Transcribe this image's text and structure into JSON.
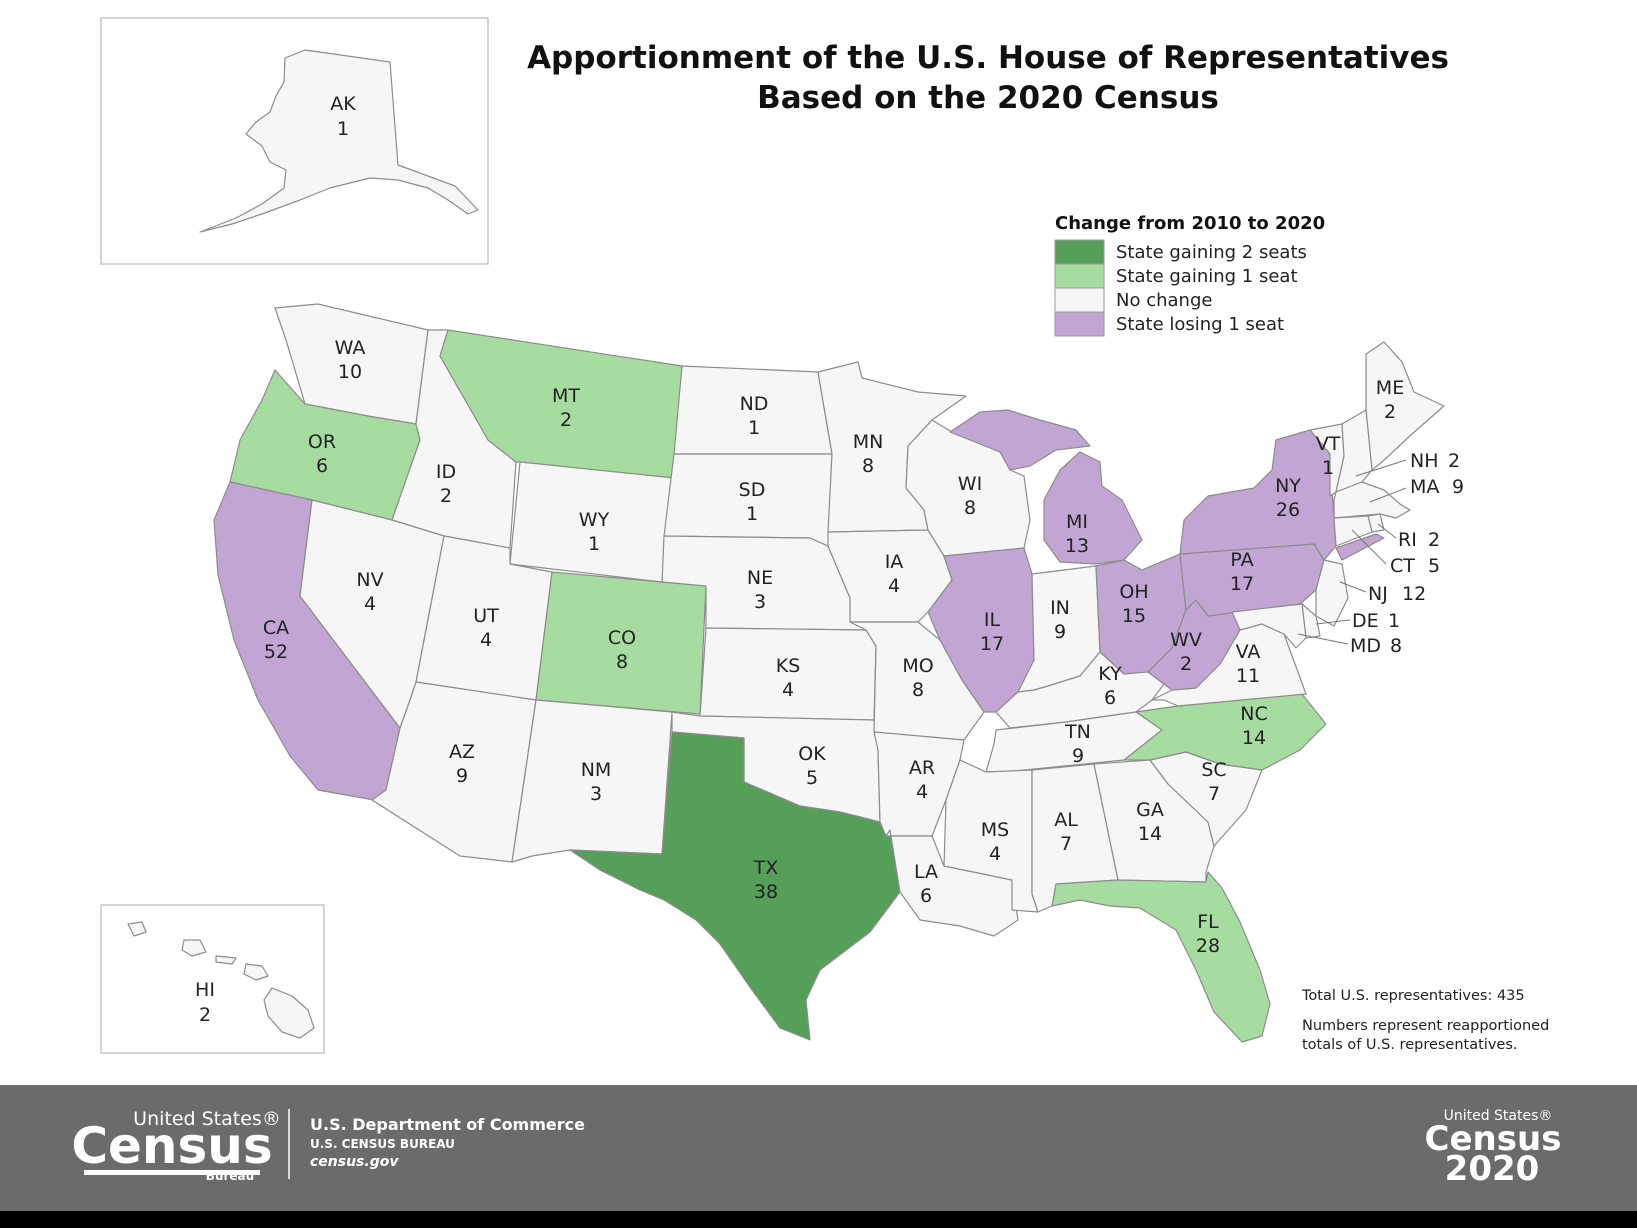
{
  "title": {
    "line1": "Apportionment of the U.S. House of Representatives",
    "line2": "Based on the 2020 Census"
  },
  "legend": {
    "title": "Change from 2010 to 2020",
    "items": [
      {
        "key": "gain2",
        "label": "State gaining 2 seats",
        "color": "#559f59"
      },
      {
        "key": "gain1",
        "label": "State gaining 1 seat",
        "color": "#a7dca1"
      },
      {
        "key": "none",
        "label": "No change",
        "color": "#f6f6f6"
      },
      {
        "key": "lose1",
        "label": "State losing 1 seat",
        "color": "#c1a5d3"
      }
    ]
  },
  "states": {
    "AK": {
      "abbr": "AK",
      "seats": "1",
      "change": "none"
    },
    "HI": {
      "abbr": "HI",
      "seats": "2",
      "change": "none"
    },
    "WA": {
      "abbr": "WA",
      "seats": "10",
      "change": "none"
    },
    "OR": {
      "abbr": "OR",
      "seats": "6",
      "change": "gain1"
    },
    "CA": {
      "abbr": "CA",
      "seats": "52",
      "change": "lose1"
    },
    "ID": {
      "abbr": "ID",
      "seats": "2",
      "change": "none"
    },
    "NV": {
      "abbr": "NV",
      "seats": "4",
      "change": "none"
    },
    "MT": {
      "abbr": "MT",
      "seats": "2",
      "change": "gain1"
    },
    "WY": {
      "abbr": "WY",
      "seats": "1",
      "change": "none"
    },
    "UT": {
      "abbr": "UT",
      "seats": "4",
      "change": "none"
    },
    "CO": {
      "abbr": "CO",
      "seats": "8",
      "change": "gain1"
    },
    "AZ": {
      "abbr": "AZ",
      "seats": "9",
      "change": "none"
    },
    "NM": {
      "abbr": "NM",
      "seats": "3",
      "change": "none"
    },
    "ND": {
      "abbr": "ND",
      "seats": "1",
      "change": "none"
    },
    "SD": {
      "abbr": "SD",
      "seats": "1",
      "change": "none"
    },
    "NE": {
      "abbr": "NE",
      "seats": "3",
      "change": "none"
    },
    "KS": {
      "abbr": "KS",
      "seats": "4",
      "change": "none"
    },
    "OK": {
      "abbr": "OK",
      "seats": "5",
      "change": "none"
    },
    "TX": {
      "abbr": "TX",
      "seats": "38",
      "change": "gain2"
    },
    "MN": {
      "abbr": "MN",
      "seats": "8",
      "change": "none"
    },
    "IA": {
      "abbr": "IA",
      "seats": "4",
      "change": "none"
    },
    "MO": {
      "abbr": "MO",
      "seats": "8",
      "change": "none"
    },
    "AR": {
      "abbr": "AR",
      "seats": "4",
      "change": "none"
    },
    "LA": {
      "abbr": "LA",
      "seats": "6",
      "change": "none"
    },
    "WI": {
      "abbr": "WI",
      "seats": "8",
      "change": "none"
    },
    "IL": {
      "abbr": "IL",
      "seats": "17",
      "change": "lose1"
    },
    "MI": {
      "abbr": "MI",
      "seats": "13",
      "change": "lose1"
    },
    "IN": {
      "abbr": "IN",
      "seats": "9",
      "change": "none"
    },
    "OH": {
      "abbr": "OH",
      "seats": "15",
      "change": "lose1"
    },
    "KY": {
      "abbr": "KY",
      "seats": "6",
      "change": "none"
    },
    "TN": {
      "abbr": "TN",
      "seats": "9",
      "change": "none"
    },
    "MS": {
      "abbr": "MS",
      "seats": "4",
      "change": "none"
    },
    "AL": {
      "abbr": "AL",
      "seats": "7",
      "change": "none"
    },
    "GA": {
      "abbr": "GA",
      "seats": "14",
      "change": "none"
    },
    "FL": {
      "abbr": "FL",
      "seats": "28",
      "change": "gain1"
    },
    "SC": {
      "abbr": "SC",
      "seats": "7",
      "change": "none"
    },
    "NC": {
      "abbr": "NC",
      "seats": "14",
      "change": "gain1"
    },
    "VA": {
      "abbr": "VA",
      "seats": "11",
      "change": "none"
    },
    "WV": {
      "abbr": "WV",
      "seats": "2",
      "change": "lose1"
    },
    "PA": {
      "abbr": "PA",
      "seats": "17",
      "change": "lose1"
    },
    "NY": {
      "abbr": "NY",
      "seats": "26",
      "change": "lose1"
    },
    "ME": {
      "abbr": "ME",
      "seats": "2",
      "change": "none"
    },
    "VT": {
      "abbr": "VT",
      "seats": "1",
      "change": "none"
    },
    "NH": {
      "abbr": "NH",
      "seats": "2",
      "change": "none"
    },
    "MA": {
      "abbr": "MA",
      "seats": "9",
      "change": "none"
    },
    "RI": {
      "abbr": "RI",
      "seats": "2",
      "change": "none"
    },
    "CT": {
      "abbr": "CT",
      "seats": "5",
      "change": "none"
    },
    "NJ": {
      "abbr": "NJ",
      "seats": "12",
      "change": "none"
    },
    "DE": {
      "abbr": "DE",
      "seats": "1",
      "change": "none"
    },
    "MD": {
      "abbr": "MD",
      "seats": "8",
      "change": "none"
    }
  },
  "notes": {
    "total": "Total U.S. representatives: 435",
    "numbers_line1": "Numbers represent reapportioned",
    "numbers_line2": "totals of U.S. representatives."
  },
  "footer": {
    "logo_top": "United States®",
    "logo_main": "Census",
    "logo_sub": "Bureau",
    "dept": "U.S. Department of Commerce",
    "bureau": "U.S. CENSUS BUREAU",
    "site": "census.gov",
    "logo2_top": "United States®",
    "logo2_main": "Census",
    "logo2_year": "2020",
    "bg_color": "#6b6b6b"
  }
}
